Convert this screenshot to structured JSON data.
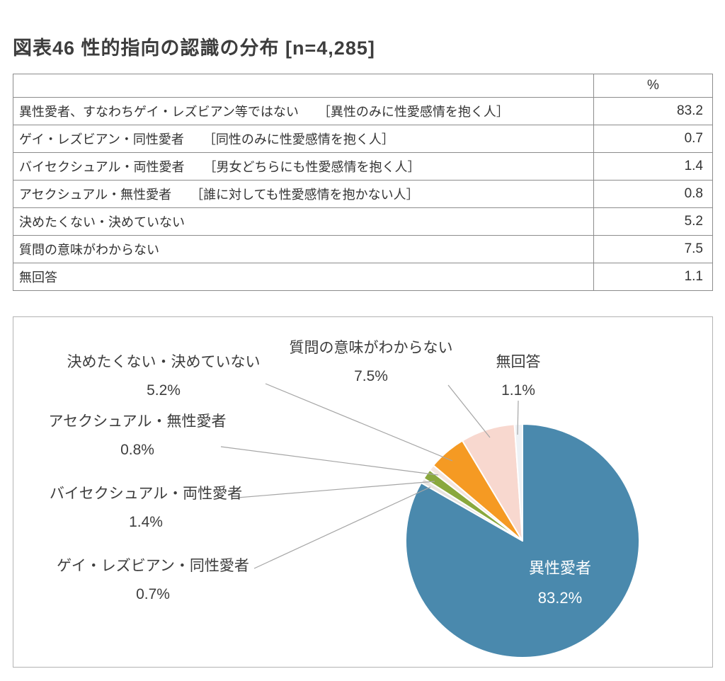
{
  "title": "図表46 性的指向の認識の分布 [n=4,285]",
  "table": {
    "header_pct": "%",
    "rows": [
      {
        "label": "異性愛者、すなわちゲイ・レズビアン等ではない　　［異性のみに性愛感情を抱く人］",
        "value": "83.2"
      },
      {
        "label": "ゲイ・レズビアン・同性愛者　　［同性のみに性愛感情を抱く人］",
        "value": "0.7"
      },
      {
        "label": "バイセクシュアル・両性愛者　　［男女どちらにも性愛感情を抱く人］",
        "value": "1.4"
      },
      {
        "label": "アセクシュアル・無性愛者　　［誰に対しても性愛感情を抱かない人］",
        "value": "0.8"
      },
      {
        "label": "決めたくない・決めていない",
        "value": "5.2"
      },
      {
        "label": "質問の意味がわからない",
        "value": "7.5"
      },
      {
        "label": "無回答",
        "value": "1.1"
      }
    ]
  },
  "chart_data": {
    "type": "pie",
    "title": "性的指向の認識の分布",
    "n": "n=4,285",
    "categories": [
      "異性愛者",
      "ゲイ・レズビアン・同性愛者",
      "バイセクシュアル・両性愛者",
      "アセクシュアル・無性愛者",
      "決めたくない・決めていない",
      "質問の意味がわからない",
      "無回答"
    ],
    "values": [
      83.2,
      0.7,
      1.4,
      0.8,
      5.2,
      7.5,
      1.1
    ],
    "colors": [
      "#4a89ad",
      "#e8e4e0",
      "#8aa83d",
      "#f5e6de",
      "#f59a23",
      "#f8d8cf",
      "#eef2f6"
    ],
    "start_angle_deg": 0,
    "direction": "clockwise",
    "legend": "none",
    "labels": [
      {
        "name": "異性愛者",
        "pct": "83.2%"
      },
      {
        "name": "ゲイ・レズビアン・同性愛者",
        "pct": "0.7%"
      },
      {
        "name": "バイセクシュアル・両性愛者",
        "pct": "1.4%"
      },
      {
        "name": "アセクシュアル・無性愛者",
        "pct": "0.8%"
      },
      {
        "name": "決めたくない・決めていない",
        "pct": "5.2%"
      },
      {
        "name": "質問の意味がわからない",
        "pct": "7.5%"
      },
      {
        "name": "無回答",
        "pct": "1.1%"
      }
    ]
  }
}
